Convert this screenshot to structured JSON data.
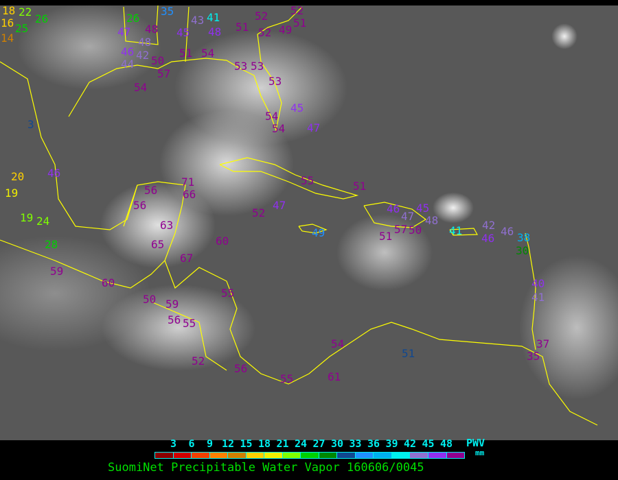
{
  "title": "SuomiNet Precipitable Water Vapor 160606/0045",
  "legend": {
    "unit_top": "PWV",
    "unit_bottom": "mm",
    "ticks": [
      "3",
      "6",
      "9",
      "12",
      "15",
      "18",
      "21",
      "24",
      "27",
      "30",
      "33",
      "36",
      "39",
      "42",
      "45",
      "48"
    ],
    "colors": [
      "#8b0000",
      "#d00000",
      "#f04000",
      "#ff8000",
      "#d08000",
      "#ffd000",
      "#f0f000",
      "#80ff00",
      "#00d000",
      "#008800",
      "#104890",
      "#2090ff",
      "#00b0f0",
      "#00f0f0",
      "#9070d0",
      "#9030f0",
      "#900090"
    ]
  },
  "map": {
    "coastline_color": "#ffff00",
    "stations": [
      {
        "v": "52",
        "c": "#900090"
      },
      {
        "v": "51",
        "c": "#900090"
      },
      {
        "v": "52",
        "c": "#900090"
      },
      {
        "v": "52",
        "c": "#900090"
      },
      {
        "v": "51",
        "c": "#900090"
      },
      {
        "v": "49",
        "c": "#900090"
      },
      {
        "v": "54",
        "c": "#900090"
      },
      {
        "v": "53",
        "c": "#900090"
      },
      {
        "v": "53",
        "c": "#900090"
      },
      {
        "v": "53",
        "c": "#900090"
      },
      {
        "v": "54",
        "c": "#900090"
      },
      {
        "v": "54",
        "c": "#900090"
      },
      {
        "v": "55",
        "c": "#900090"
      },
      {
        "v": "51",
        "c": "#900090"
      },
      {
        "v": "52",
        "c": "#900090"
      },
      {
        "v": "60",
        "c": "#900090"
      },
      {
        "v": "63",
        "c": "#900090"
      },
      {
        "v": "65",
        "c": "#900090"
      },
      {
        "v": "67",
        "c": "#900090"
      },
      {
        "v": "59",
        "c": "#900090"
      },
      {
        "v": "60",
        "c": "#900090"
      },
      {
        "v": "50",
        "c": "#900090"
      },
      {
        "v": "59",
        "c": "#900090"
      },
      {
        "v": "56",
        "c": "#900090"
      },
      {
        "v": "55",
        "c": "#900090"
      },
      {
        "v": "55",
        "c": "#900090"
      },
      {
        "v": "52",
        "c": "#900090"
      },
      {
        "v": "56",
        "c": "#900090"
      },
      {
        "v": "55",
        "c": "#900090"
      },
      {
        "v": "61",
        "c": "#900090"
      },
      {
        "v": "57",
        "c": "#900090"
      },
      {
        "v": "51",
        "c": "#900090"
      },
      {
        "v": "50",
        "c": "#900090"
      },
      {
        "v": "45",
        "c": "#9030f0"
      },
      {
        "v": "47",
        "c": "#9030f0"
      },
      {
        "v": "56",
        "c": "#900090"
      },
      {
        "v": "56",
        "c": "#900090"
      },
      {
        "v": "71",
        "c": "#900090"
      },
      {
        "v": "66",
        "c": "#900090"
      },
      {
        "v": "48",
        "c": "#900090"
      },
      {
        "v": "47",
        "c": "#9030f0"
      },
      {
        "v": "48",
        "c": "#9070d0"
      },
      {
        "v": "46",
        "c": "#9030f0"
      },
      {
        "v": "42",
        "c": "#9070d0"
      },
      {
        "v": "44",
        "c": "#9070d0"
      },
      {
        "v": "50",
        "c": "#900090"
      },
      {
        "v": "57",
        "c": "#900090"
      },
      {
        "v": "51",
        "c": "#900090"
      },
      {
        "v": "54",
        "c": "#900090"
      },
      {
        "v": "45",
        "c": "#9030f0"
      },
      {
        "v": "43",
        "c": "#9070d0"
      },
      {
        "v": "41",
        "c": "#00f0f0"
      },
      {
        "v": "48",
        "c": "#9030f0"
      },
      {
        "v": "35",
        "c": "#2090ff"
      },
      {
        "v": "26",
        "c": "#00d000"
      },
      {
        "v": "22",
        "c": "#80ff00"
      },
      {
        "v": "26",
        "c": "#00d000"
      },
      {
        "v": "25",
        "c": "#00d000"
      },
      {
        "v": "18",
        "c": "#ffd000"
      },
      {
        "v": "14",
        "c": "#d08000"
      },
      {
        "v": "16",
        "c": "#ffd000"
      },
      {
        "v": "46",
        "c": "#9030f0"
      },
      {
        "v": "20",
        "c": "#ffd000"
      },
      {
        "v": "19",
        "c": "#f0f000"
      },
      {
        "v": "19",
        "c": "#80ff00"
      },
      {
        "v": "24",
        "c": "#80ff00"
      },
      {
        "v": "28",
        "c": "#00d000"
      },
      {
        "v": "3",
        "c": "#104890"
      },
      {
        "v": "47",
        "c": "#9030f0"
      },
      {
        "v": "49",
        "c": "#2090ff"
      },
      {
        "v": "41",
        "c": "#00f0f0"
      },
      {
        "v": "42",
        "c": "#9070d0"
      },
      {
        "v": "46",
        "c": "#9030f0"
      },
      {
        "v": "46",
        "c": "#9070d0"
      },
      {
        "v": "38",
        "c": "#00b0f0"
      },
      {
        "v": "30",
        "c": "#008800"
      },
      {
        "v": "40",
        "c": "#9030f0"
      },
      {
        "v": "41",
        "c": "#9070d0"
      },
      {
        "v": "51",
        "c": "#104890"
      },
      {
        "v": "54",
        "c": "#900090"
      },
      {
        "v": "35",
        "c": "#900090"
      },
      {
        "v": "37",
        "c": "#900090"
      },
      {
        "v": "46",
        "c": "#9030f0"
      },
      {
        "v": "48",
        "c": "#9070d0"
      },
      {
        "v": "47",
        "c": "#9070d0"
      },
      {
        "v": "45",
        "c": "#9030f0"
      }
    ]
  }
}
